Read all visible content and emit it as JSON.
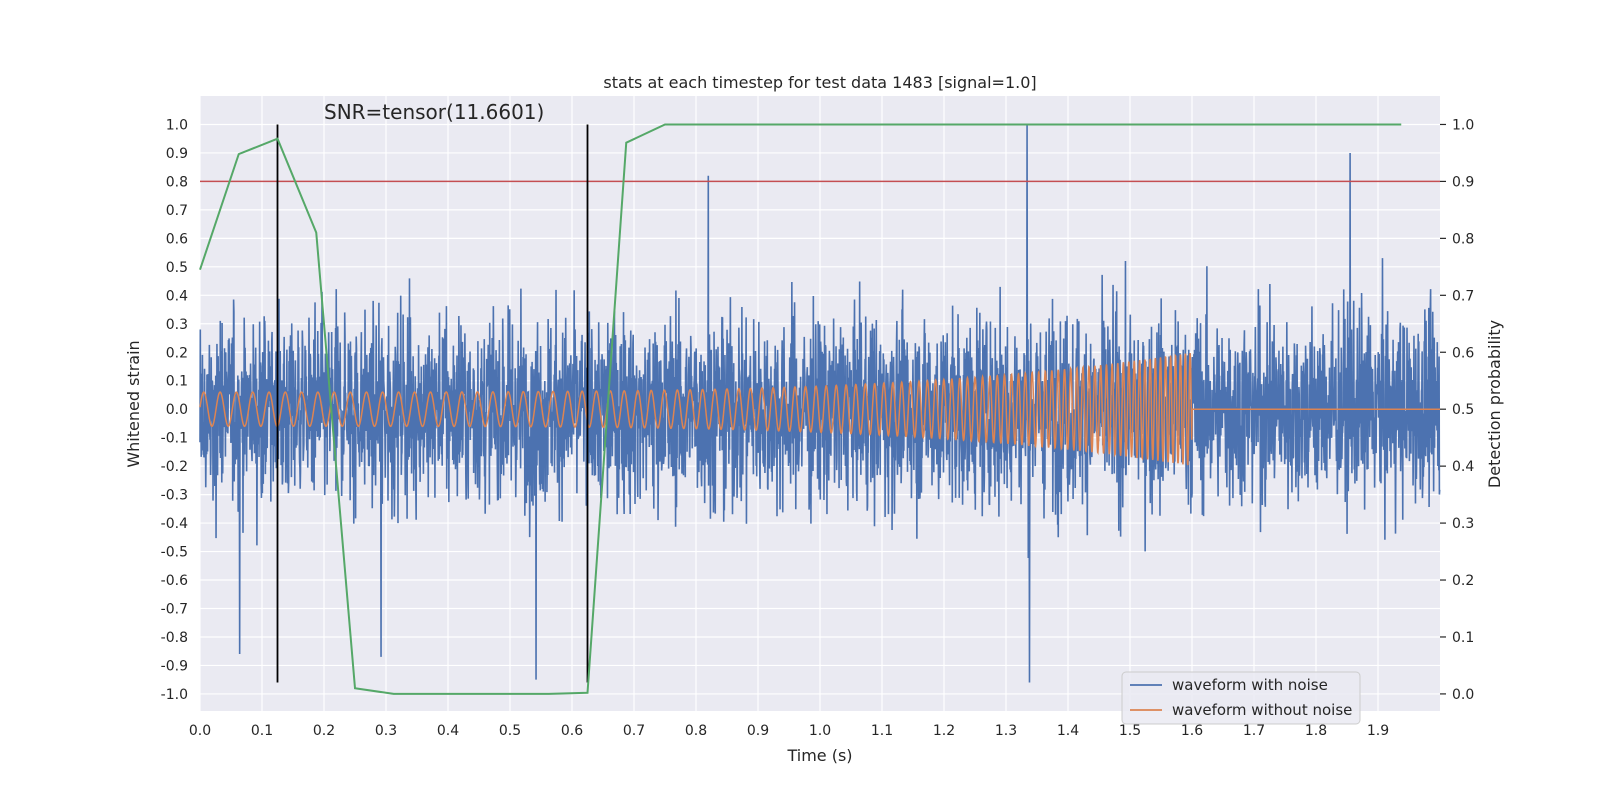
{
  "chart_data": {
    "type": "line",
    "title": "stats at each timestep for test data 1483 [signal=1.0]",
    "xlabel": "Time (s)",
    "ylabel": "Whitened strain",
    "y2label": "Detection probability",
    "xlim": [
      0.0,
      2.0
    ],
    "ylim": [
      -1.06,
      1.1
    ],
    "y2lim": [
      -0.03,
      1.05
    ],
    "x_ticks": [
      "0.0",
      "0.1",
      "0.2",
      "0.3",
      "0.4",
      "0.5",
      "0.6",
      "0.7",
      "0.8",
      "0.9",
      "1.0",
      "1.1",
      "1.2",
      "1.3",
      "1.4",
      "1.5",
      "1.6",
      "1.7",
      "1.8",
      "1.9"
    ],
    "y_ticks": [
      "1.0",
      "0.9",
      "0.8",
      "0.7",
      "0.6",
      "0.5",
      "0.4",
      "0.3",
      "0.2",
      "0.1",
      "0.0",
      "-0.1",
      "-0.2",
      "-0.3",
      "-0.4",
      "-0.5",
      "-0.6",
      "-0.7",
      "-0.8",
      "-0.9",
      "-1.0"
    ],
    "y2_ticks": [
      "1.0",
      "0.9",
      "0.8",
      "0.7",
      "0.6",
      "0.5",
      "0.4",
      "0.3",
      "0.2",
      "0.1",
      "0.0"
    ],
    "grid": true,
    "annotation": "SNR=tensor(11.6601)",
    "annotation_position": [
      0.2,
      1.02
    ],
    "threshold_line": {
      "y2": 0.9,
      "color": "#c44e52"
    },
    "vertical_markers": {
      "x": [
        0.125,
        0.625
      ],
      "y_range": [
        -0.96,
        1.0
      ],
      "color": "#000000"
    },
    "detection_probability": {
      "x": [
        0.0,
        0.0625,
        0.125,
        0.1875,
        0.25,
        0.3125,
        0.375,
        0.4375,
        0.5,
        0.5625,
        0.625,
        0.6875,
        0.75,
        0.8125,
        0.875,
        0.9375,
        1.0,
        1.0625,
        1.125,
        1.1875,
        1.25,
        1.3125,
        1.375,
        1.4375,
        1.5,
        1.5625,
        1.625,
        1.6875,
        1.75,
        1.8125,
        1.875,
        1.9375
      ],
      "y": [
        0.745,
        0.948,
        0.975,
        0.81,
        0.01,
        0.0,
        0.0,
        0.0,
        0.0,
        0.0,
        0.002,
        0.968,
        1.0,
        1.0,
        1.0,
        1.0,
        1.0,
        1.0,
        1.0,
        1.0,
        1.0,
        1.0,
        1.0,
        1.0,
        1.0,
        1.0,
        1.0,
        1.0,
        1.0,
        1.0,
        1.0,
        1.0
      ],
      "color": "#55a868"
    },
    "series": [
      {
        "name": "waveform with noise",
        "color": "#4c72b0",
        "sample_rate": 2048,
        "duration": 2.0,
        "noise_std": 0.28,
        "spikes": [
          [
            0.82,
            0.82
          ],
          [
            1.334,
            1.0
          ],
          [
            1.855,
            0.9
          ],
          [
            0.542,
            -0.95
          ],
          [
            1.338,
            -0.96
          ],
          [
            0.064,
            -0.86
          ],
          [
            0.292,
            -0.87
          ]
        ]
      },
      {
        "name": "waveform without noise",
        "color": "#dd8452",
        "f_start": 38,
        "f_end": 130,
        "amp_start": 0.06,
        "amp_end": 0.2,
        "end_time": 1.6
      }
    ],
    "legend": {
      "position": "lower-right",
      "entries": [
        {
          "label": "waveform with noise",
          "color": "#4c72b0"
        },
        {
          "label": "waveform without noise",
          "color": "#dd8452"
        }
      ]
    }
  }
}
